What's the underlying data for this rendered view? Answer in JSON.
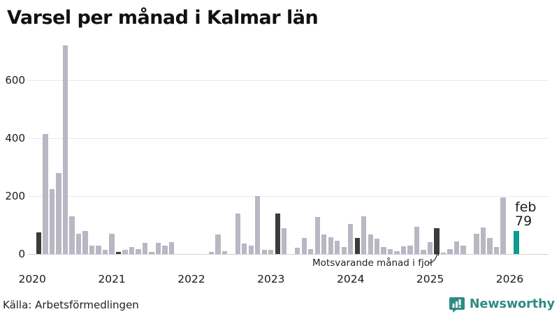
{
  "title": "Varsel per månad i Kalmar län",
  "source": "Källa: Arbetsförmedlingen",
  "annotation": {
    "text": "Motsvarande månad i fjol"
  },
  "highlight_label": {
    "line1": "feb",
    "line2": "79"
  },
  "branding": {
    "name": "Newsworthy",
    "icon": "bar-chart-speech-bubble-icon",
    "color": "#2e8b85"
  },
  "chart_data": {
    "type": "bar",
    "title": "Varsel per månad i Kalmar län",
    "xlabel": "",
    "ylabel": "",
    "x_start": "feb 2020",
    "x_end": "feb 2026",
    "x_tick_labels": [
      "2020",
      "2021",
      "2022",
      "2023",
      "2024",
      "2025",
      "2026"
    ],
    "y_ticks": [
      0,
      200,
      400,
      600
    ],
    "ylim": [
      0,
      730
    ],
    "grid": "horizontal",
    "legend": "none",
    "values": [
      75,
      415,
      225,
      280,
      720,
      130,
      70,
      80,
      28,
      30,
      15,
      70,
      8,
      14,
      25,
      18,
      38,
      8,
      38,
      28,
      40,
      0,
      0,
      0,
      0,
      0,
      8,
      67,
      10,
      0,
      140,
      37,
      28,
      200,
      15,
      15,
      140,
      90,
      0,
      22,
      56,
      16,
      127,
      67,
      57,
      45,
      24,
      104,
      55,
      130,
      67,
      52,
      23,
      16,
      10,
      27,
      28,
      94,
      14,
      42,
      88,
      5,
      17,
      43,
      30,
      0,
      70,
      92,
      55,
      25,
      195,
      0,
      79
    ],
    "dark_indices": [
      0,
      12,
      24,
      36,
      48,
      60
    ],
    "dark_meaning": "Motsvarande månad i fjol (februari varje år)",
    "highlight_index": 72,
    "highlight_value": 79,
    "highlight_month": "feb",
    "colors": {
      "bar": "#b9b7c3",
      "dark": "#3b3b3b",
      "highlight": "#0f9c8f"
    }
  }
}
